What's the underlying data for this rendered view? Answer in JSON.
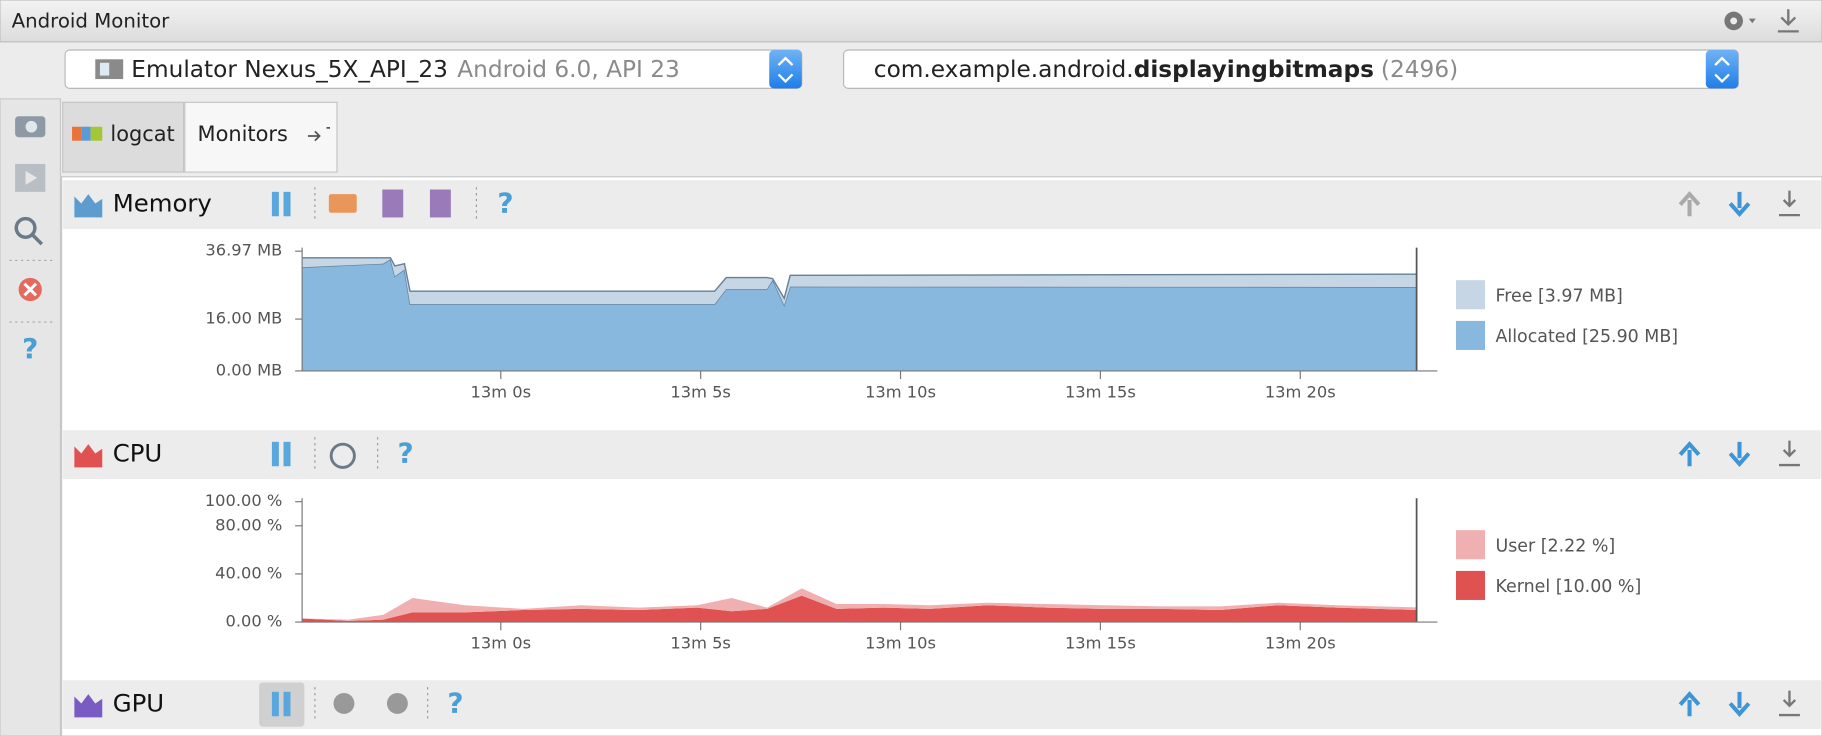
{
  "window": {
    "title": "Android Monitor"
  },
  "device": {
    "name": "Emulator Nexus_5X_API_23",
    "details": "Android 6.0, API 23"
  },
  "process": {
    "package_prefix": "com.example.android.",
    "package_name": "displayingbitmaps",
    "pid": "(2496)"
  },
  "sidebar": {
    "help": "?"
  },
  "tabs": [
    "logcat",
    "Monitors"
  ],
  "monitors": [
    {
      "title": "Memory",
      "help": "?"
    },
    {
      "title": "CPU",
      "help": "?"
    },
    {
      "title": "GPU",
      "help": "?"
    }
  ],
  "chart_data": [
    {
      "type": "stacked-area",
      "x": [
        775.03,
        777.06,
        777.24,
        777.35,
        777.59,
        777.73,
        785.35,
        785.64,
        786.66,
        786.8,
        787.09,
        787.24,
        787.38,
        802.91
      ],
      "series": [
        {
          "name": "Free [3.97 MB]",
          "color": "#c7d6e4",
          "values": [
            2.9,
            1.8,
            0.4,
            3.2,
            1.8,
            4.0,
            4.0,
            3.5,
            3.5,
            0.4,
            2.1,
            3.5,
            3.5,
            3.97
          ]
        },
        {
          "name": "Allocated [25.90 MB]",
          "color": "#89b8df",
          "values": [
            32.0,
            33.1,
            34.5,
            29.2,
            31.3,
            20.6,
            20.6,
            25.3,
            25.3,
            28.1,
            20.3,
            26.0,
            26.0,
            25.9
          ]
        }
      ],
      "line_color": "#62809a",
      "xlim": [
        775.03,
        803.43
      ],
      "xticks": [
        {
          "value": 780,
          "label": "13m 0s"
        },
        {
          "value": 785,
          "label": "13m 5s"
        },
        {
          "value": 790,
          "label": "13m 10s"
        },
        {
          "value": 795,
          "label": "13m 15s"
        },
        {
          "value": 800,
          "label": "13m 20s"
        }
      ],
      "ylim": [
        0,
        36.97
      ],
      "yticks": [
        {
          "value": 0,
          "label": "0.00 MB"
        },
        {
          "value": 16,
          "label": "16.00 MB"
        },
        {
          "value": 36.97,
          "label": "36.97 MB"
        }
      ]
    },
    {
      "type": "stacked-area",
      "x": [
        775.03,
        776.19,
        777.06,
        777.79,
        779.1,
        780.55,
        782.01,
        783.46,
        784.91,
        785.78,
        786.66,
        787.53,
        788.4,
        789.56,
        790.73,
        792.18,
        793.63,
        795.09,
        796.54,
        797.99,
        799.45,
        800.9,
        802.91
      ],
      "series": [
        {
          "name": "User [2.22 %]",
          "color": "#f0afb0",
          "values": [
            0,
            1,
            4,
            12,
            6,
            1,
            3,
            2,
            2,
            11,
            1,
            6,
            4,
            3,
            3,
            2,
            3,
            3,
            2,
            3,
            2,
            2,
            2.22
          ]
        },
        {
          "name": "Kernel [10.00 %]",
          "color": "#e05252",
          "values": [
            3,
            1,
            2,
            8,
            8,
            10,
            11,
            10,
            12,
            9,
            11,
            22,
            11,
            12,
            11,
            14,
            12,
            11,
            11,
            10,
            14,
            12,
            10
          ]
        }
      ],
      "xlim": [
        775.03,
        803.43
      ],
      "xticks": [
        {
          "value": 780,
          "label": "13m 0s"
        },
        {
          "value": 785,
          "label": "13m 5s"
        },
        {
          "value": 790,
          "label": "13m 10s"
        },
        {
          "value": 795,
          "label": "13m 15s"
        },
        {
          "value": 800,
          "label": "13m 20s"
        }
      ],
      "ylim": [
        0,
        100
      ],
      "yticks": [
        {
          "value": 0,
          "label": "0.00 %"
        },
        {
          "value": 40,
          "label": "40.00 %"
        },
        {
          "value": 80,
          "label": "80.00 %"
        },
        {
          "value": 100,
          "label": "100.00 %"
        }
      ]
    }
  ]
}
